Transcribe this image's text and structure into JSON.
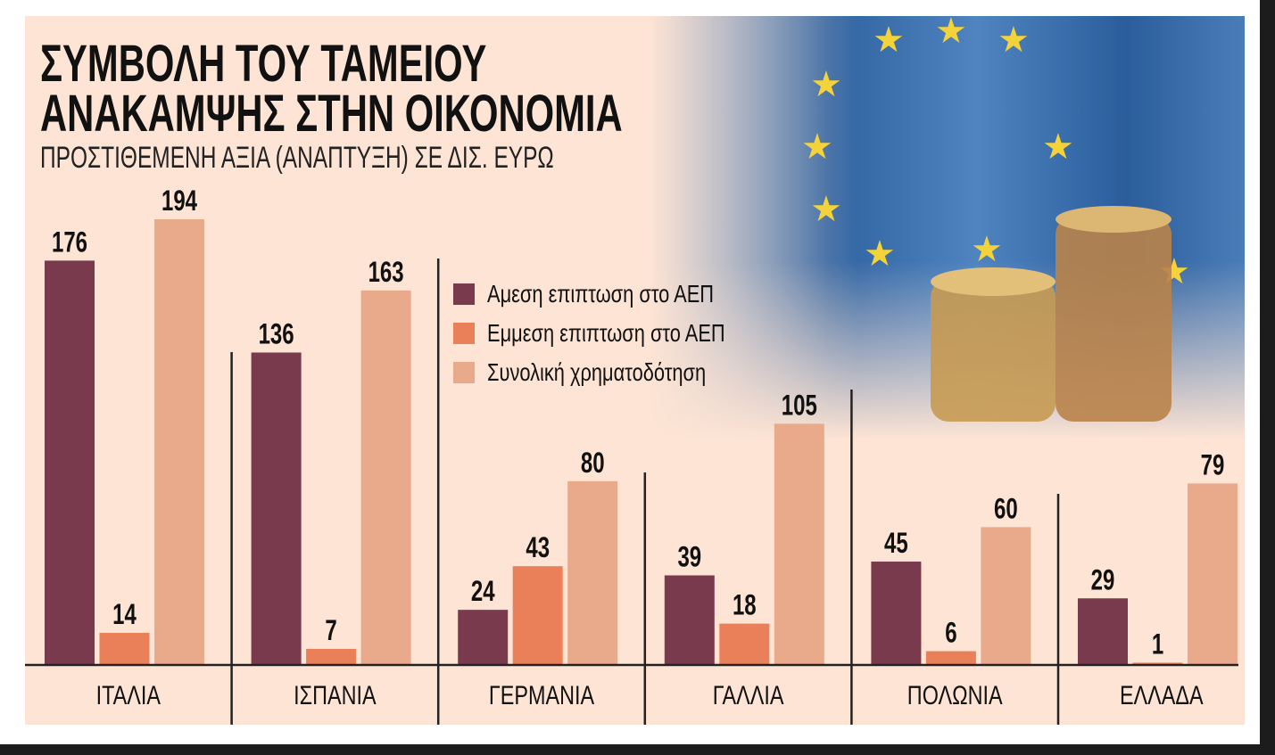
{
  "title_line1": "ΣΥΜΒΟΛΗ ΤΟΥ ΤΑΜΕΙΟΥ",
  "title_line2": "ΑΝΑΚΑΜΨΗΣ ΣΤΗΝ ΟΙΚΟΝΟΜΙΑ",
  "subtitle": "ΠΡΟΣΤΙΘΕΜΕΝΗ ΑΞΙΑ (ΑΝΑΠΤΥΞΗ) ΣΕ ΔΙΣ. ΕΥΡΩ",
  "colors": {
    "direct": "#7a3a4e",
    "indirect": "#ea8059",
    "total": "#e9a98b",
    "background": "#fde4d4"
  },
  "chart_data": {
    "type": "bar",
    "title": "ΣΥΜΒΟΛΗ ΤΟΥ ΤΑΜΕΙΟΥ ΑΝΑΚΑΜΨΗΣ ΣΤΗΝ ΟΙΚΟΝΟΜΙΑ",
    "subtitle": "ΠΡΟΣΤΙΘΕΜΕΝΗ ΑΞΙΑ (ΑΝΑΠΤΥΞΗ) ΣΕ ΔΙΣ. ΕΥΡΩ",
    "categories": [
      "ΙΤΑΛΙΑ",
      "ΙΣΠΑΝΙΑ",
      "ΓΕΡΜΑΝΙΑ",
      "ΓΑΛΛΙΑ",
      "ΠΟΛΩΝΙΑ",
      "ΕΛΛΑΔΑ"
    ],
    "series": [
      {
        "name": "Αμεση επιπτωση στο ΑΕΠ",
        "values": [
          176,
          136,
          24,
          39,
          45,
          29
        ]
      },
      {
        "name": "Εμμεση επιπτωση στο ΑΕΠ",
        "values": [
          14,
          7,
          43,
          18,
          6,
          1
        ]
      },
      {
        "name": "Συνολική χρηματοδότηση",
        "values": [
          194,
          163,
          80,
          105,
          60,
          79
        ]
      }
    ],
    "ylim": [
      0,
      194
    ],
    "xlabel": "",
    "ylabel": "",
    "grid": false,
    "legend_position": "top-center"
  }
}
